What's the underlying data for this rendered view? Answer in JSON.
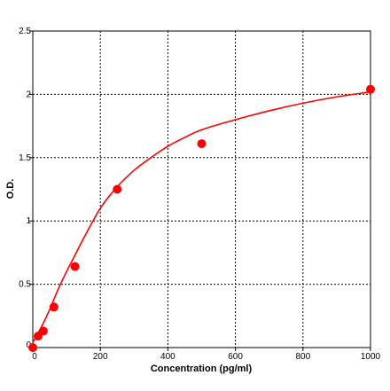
{
  "chart_data": {
    "type": "scatter",
    "title": "",
    "xlabel": "Concentration (pg/ml)",
    "ylabel": "O.D.",
    "xlim": [
      0,
      1000
    ],
    "ylim": [
      0,
      2.5
    ],
    "x_ticks": [
      0,
      200,
      400,
      600,
      800,
      1000
    ],
    "y_ticks": [
      0,
      0.5,
      1,
      1.5,
      2,
      2.5
    ],
    "x_tick_labels": [
      "0",
      "200",
      "400",
      "600",
      "800",
      "1000"
    ],
    "y_tick_labels": [
      "0",
      "0.5",
      "1",
      "1.5",
      "2",
      "2.5"
    ],
    "grid": "dotted",
    "series": [
      {
        "points": [
          {
            "x": 0,
            "y": 0.0
          },
          {
            "x": 15.6,
            "y": 0.09
          },
          {
            "x": 31.25,
            "y": 0.13
          },
          {
            "x": 62.5,
            "y": 0.32
          },
          {
            "x": 125,
            "y": 0.64
          },
          {
            "x": 250,
            "y": 1.25
          },
          {
            "x": 500,
            "y": 1.61
          },
          {
            "x": 1000,
            "y": 2.04
          }
        ],
        "color": "#ff0000"
      }
    ],
    "fit_curve": {
      "x": [
        0,
        25,
        50,
        75,
        100,
        125,
        150,
        200,
        250,
        300,
        350,
        400,
        450,
        500,
        600,
        700,
        800,
        900,
        1000
      ],
      "y": [
        0.04,
        0.16,
        0.3,
        0.46,
        0.6,
        0.73,
        0.86,
        1.1,
        1.27,
        1.4,
        1.5,
        1.59,
        1.66,
        1.72,
        1.8,
        1.87,
        1.93,
        1.98,
        2.02
      ],
      "color": "#ff0000"
    }
  }
}
